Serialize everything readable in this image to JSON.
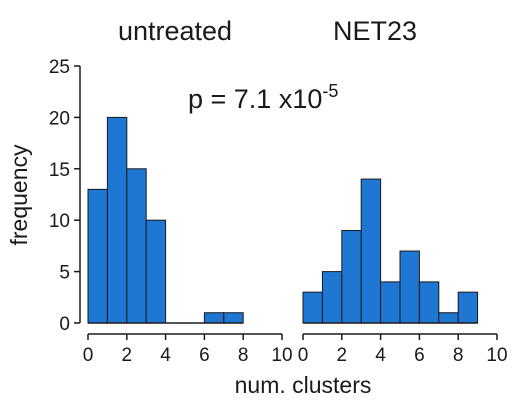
{
  "chart_data": {
    "type": "bar",
    "xlabel": "num. clusters",
    "ylabel": "frequency",
    "annotation": {
      "base": "p = 7.1 x10",
      "exponent": "-5"
    },
    "bar_color": "#1f77d4",
    "ylim": [
      0,
      25
    ],
    "yticks": [
      "0",
      "5",
      "10",
      "15",
      "20",
      "25"
    ],
    "panels": [
      {
        "title": "untreated",
        "xlim": [
          0,
          10
        ],
        "xticks": [
          "0",
          "2",
          "4",
          "6",
          "8",
          "10"
        ],
        "bin_width": 1,
        "bins": [
          {
            "x": 0,
            "value": 13
          },
          {
            "x": 1,
            "value": 20
          },
          {
            "x": 2,
            "value": 15
          },
          {
            "x": 3,
            "value": 10
          },
          {
            "x": 4,
            "value": 0
          },
          {
            "x": 5,
            "value": 0
          },
          {
            "x": 6,
            "value": 1
          },
          {
            "x": 7,
            "value": 1
          }
        ]
      },
      {
        "title": "NET23",
        "xlim": [
          0,
          10
        ],
        "xticks": [
          "0",
          "2",
          "4",
          "6",
          "8",
          "10"
        ],
        "bin_width": 1,
        "bins": [
          {
            "x": 0,
            "value": 3
          },
          {
            "x": 1,
            "value": 5
          },
          {
            "x": 2,
            "value": 9
          },
          {
            "x": 3,
            "value": 14
          },
          {
            "x": 4,
            "value": 4
          },
          {
            "x": 5,
            "value": 7
          },
          {
            "x": 6,
            "value": 4
          },
          {
            "x": 7,
            "value": 1
          },
          {
            "x": 8,
            "value": 3
          }
        ]
      }
    ]
  }
}
